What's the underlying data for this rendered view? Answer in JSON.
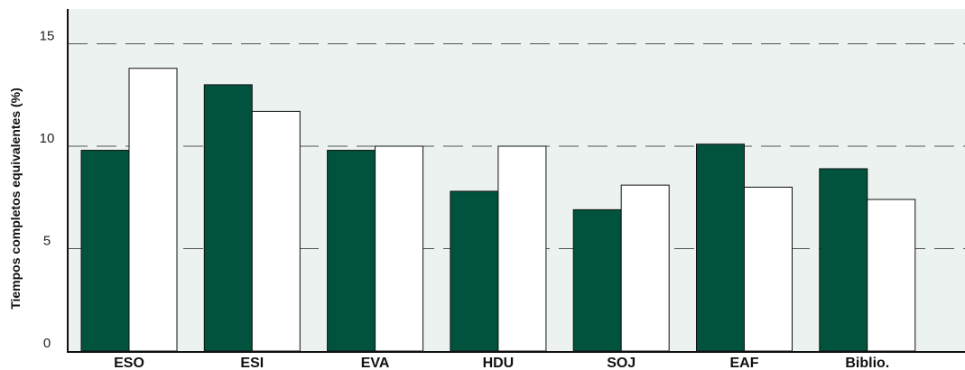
{
  "chart_data": {
    "type": "bar",
    "title": "",
    "xlabel": "",
    "ylabel": "Tiempos completos equivalentes (%)",
    "ylim": [
      0,
      16
    ],
    "yticks": [
      "0",
      "5",
      "10",
      "15"
    ],
    "ytick_values": [
      0,
      5,
      10,
      15
    ],
    "grid": "dashed horizontal lines at 5, 10, 15",
    "categories": [
      "ESO",
      "ESI",
      "EVA",
      "HDU",
      "SOJ",
      "EAF",
      "Biblio."
    ],
    "series": [
      {
        "values": [
          9.8,
          13.0,
          9.8,
          7.8,
          6.9,
          10.1,
          8.9
        ],
        "color": "#02533e"
      },
      {
        "values": [
          13.8,
          11.7,
          10.0,
          10.0,
          8.1,
          8.0,
          7.4
        ],
        "color": "#ffffff"
      }
    ]
  },
  "colors": {
    "plot_background": "#ebf2ef",
    "axis": "#111111",
    "grid": "#555555",
    "bar_stroke": "#111111"
  }
}
